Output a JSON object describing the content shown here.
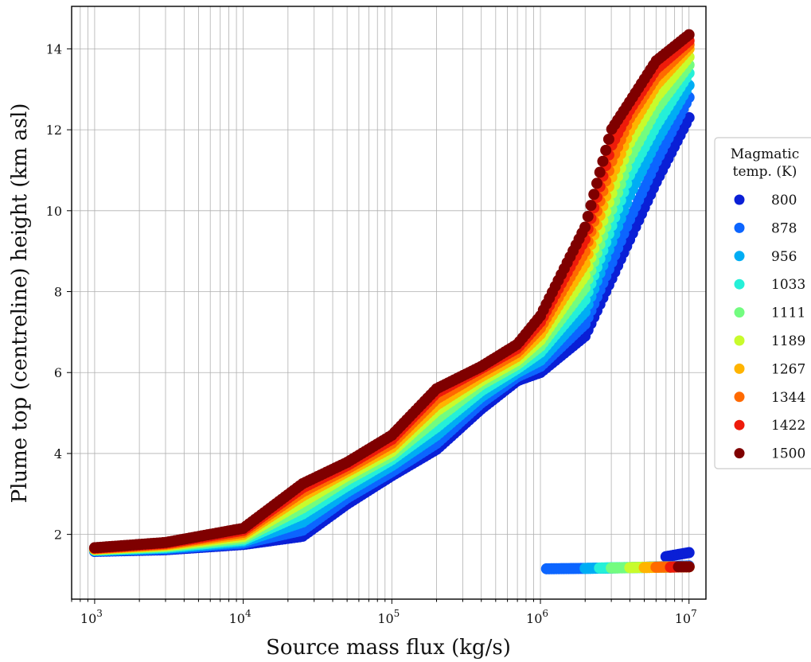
{
  "chart_data": {
    "type": "scatter",
    "xlabel": "Source mass flux (kg/s)",
    "ylabel": "Plume top (centreline) height (km asl)",
    "xscale": "log",
    "xlim": [
      700,
      13000000
    ],
    "ylim": [
      0.4,
      15.05
    ],
    "x_ticks": [
      1000,
      10000,
      100000,
      1000000,
      10000000
    ],
    "x_tick_labels": [
      {
        "base": "10",
        "exp": "3"
      },
      {
        "base": "10",
        "exp": "4"
      },
      {
        "base": "10",
        "exp": "5"
      },
      {
        "base": "10",
        "exp": "6"
      },
      {
        "base": "10",
        "exp": "7"
      }
    ],
    "y_ticks": [
      2,
      4,
      6,
      8,
      10,
      12,
      14
    ],
    "y_tick_labels": [
      "2",
      "4",
      "6",
      "8",
      "10",
      "12",
      "14"
    ],
    "grid": true,
    "legend": {
      "title_lines": [
        "Magmatic",
        "temp. (K)"
      ],
      "placement": "outside-right"
    },
    "series": [
      {
        "name": "800",
        "color": "#0a1fd6",
        "x": [
          1000,
          3000,
          10000,
          25000,
          50000,
          100000,
          200000,
          400000,
          700000,
          1000000,
          2000000,
          3000000,
          4000000,
          6000000,
          10000000
        ],
        "y": [
          1.58,
          1.62,
          1.75,
          1.95,
          2.75,
          3.45,
          4.1,
          5.1,
          5.8,
          6.0,
          6.9,
          8.3,
          9.3,
          10.7,
          12.3
        ],
        "low_x": [
          7000000,
          10000000
        ],
        "low_y": [
          1.45,
          1.55
        ]
      },
      {
        "name": "878",
        "color": "#0c65ff",
        "x": [
          1000,
          3000,
          10000,
          25000,
          50000,
          100000,
          200000,
          400000,
          700000,
          1000000,
          2000000,
          3000000,
          4000000,
          6000000,
          10000000
        ],
        "y": [
          1.59,
          1.64,
          1.78,
          2.1,
          2.9,
          3.55,
          4.25,
          5.25,
          5.9,
          6.15,
          7.2,
          8.7,
          9.8,
          11.2,
          12.8
        ],
        "low_x": [
          1100000,
          2000000,
          4000000,
          10000000
        ],
        "low_y": [
          1.15,
          1.16,
          1.18,
          1.22
        ]
      },
      {
        "name": "956",
        "color": "#00adf4",
        "x": [
          1000,
          3000,
          10000,
          25000,
          50000,
          100000,
          200000,
          400000,
          700000,
          1000000,
          2000000,
          3000000,
          4000000,
          6000000,
          10000000
        ],
        "y": [
          1.6,
          1.66,
          1.82,
          2.3,
          3.05,
          3.7,
          4.45,
          5.4,
          6.0,
          6.3,
          7.5,
          9.2,
          10.4,
          11.7,
          13.1
        ],
        "low_x": [
          2000000,
          3000000,
          10000000
        ],
        "low_y": [
          1.16,
          1.17,
          1.2
        ]
      },
      {
        "name": "1033",
        "color": "#25f0d8",
        "x": [
          1000,
          3000,
          10000,
          25000,
          50000,
          100000,
          200000,
          400000,
          700000,
          1000000,
          2000000,
          3000000,
          4000000,
          6000000,
          10000000
        ],
        "y": [
          1.61,
          1.68,
          1.86,
          2.5,
          3.2,
          3.85,
          4.65,
          5.55,
          6.1,
          6.5,
          7.8,
          9.6,
          10.9,
          12.1,
          13.4
        ],
        "low_x": [
          2500000,
          3500000,
          10000000
        ],
        "low_y": [
          1.17,
          1.18,
          1.2
        ]
      },
      {
        "name": "1111",
        "color": "#73fc80",
        "x": [
          1000,
          3000,
          10000,
          25000,
          50000,
          100000,
          200000,
          400000,
          700000,
          1000000,
          2000000,
          3000000,
          4000000,
          6000000,
          10000000
        ],
        "y": [
          1.62,
          1.7,
          1.9,
          2.65,
          3.35,
          3.95,
          4.85,
          5.7,
          6.2,
          6.65,
          8.1,
          10.0,
          11.3,
          12.5,
          13.6
        ],
        "low_x": [
          3000000,
          4500000,
          10000000
        ],
        "low_y": [
          1.17,
          1.18,
          1.2
        ]
      },
      {
        "name": "1189",
        "color": "#c8fb2c",
        "x": [
          1000,
          3000,
          10000,
          25000,
          50000,
          100000,
          200000,
          400000,
          700000,
          1000000,
          2000000,
          3000000,
          4000000,
          6000000,
          10000000
        ],
        "y": [
          1.63,
          1.72,
          1.95,
          2.8,
          3.45,
          4.05,
          5.05,
          5.8,
          6.3,
          6.8,
          8.4,
          10.4,
          11.7,
          12.8,
          13.8
        ],
        "low_x": [
          4000000,
          5500000,
          10000000
        ],
        "low_y": [
          1.18,
          1.19,
          1.2
        ]
      },
      {
        "name": "1267",
        "color": "#ffb400",
        "x": [
          1000,
          3000,
          10000,
          25000,
          50000,
          100000,
          200000,
          400000,
          700000,
          1000000,
          2000000,
          3000000,
          4000000,
          6000000,
          10000000
        ],
        "y": [
          1.64,
          1.74,
          2.0,
          2.95,
          3.55,
          4.15,
          5.2,
          5.9,
          6.4,
          6.95,
          8.7,
          10.8,
          12.0,
          13.1,
          14.0
        ],
        "low_x": [
          5000000,
          7000000,
          10000000
        ],
        "low_y": [
          1.18,
          1.19,
          1.2
        ]
      },
      {
        "name": "1344",
        "color": "#ff6a00",
        "x": [
          1000,
          3000,
          10000,
          25000,
          50000,
          100000,
          200000,
          400000,
          700000,
          1000000,
          2000000,
          3000000,
          4000000,
          6000000,
          10000000
        ],
        "y": [
          1.65,
          1.76,
          2.05,
          3.05,
          3.62,
          4.25,
          5.35,
          6.0,
          6.5,
          7.1,
          9.0,
          11.2,
          12.3,
          13.3,
          14.1
        ],
        "low_x": [
          6000000,
          8000000,
          10000000
        ],
        "low_y": [
          1.19,
          1.2,
          1.2
        ]
      },
      {
        "name": "1422",
        "color": "#ee1b0b",
        "x": [
          1000,
          3000,
          10000,
          25000,
          50000,
          100000,
          200000,
          400000,
          700000,
          1000000,
          2000000,
          3000000,
          4000000,
          6000000,
          10000000
        ],
        "y": [
          1.66,
          1.78,
          2.1,
          3.15,
          3.7,
          4.35,
          5.5,
          6.1,
          6.6,
          7.25,
          9.3,
          11.6,
          12.5,
          13.5,
          14.2
        ],
        "low_x": [
          7500000,
          9000000,
          10000000
        ],
        "low_y": [
          1.19,
          1.2,
          1.2
        ]
      },
      {
        "name": "1500",
        "color": "#7f0000",
        "x": [
          1000,
          3000,
          10000,
          25000,
          50000,
          100000,
          200000,
          400000,
          700000,
          1000000,
          2000000,
          3000000,
          4000000,
          6000000,
          10000000
        ],
        "y": [
          1.67,
          1.8,
          2.15,
          3.25,
          3.78,
          4.45,
          5.6,
          6.15,
          6.7,
          7.4,
          9.6,
          12.0,
          12.7,
          13.7,
          14.35
        ],
        "low_x": [
          8500000,
          10000000
        ],
        "low_y": [
          1.2,
          1.2
        ]
      }
    ]
  }
}
